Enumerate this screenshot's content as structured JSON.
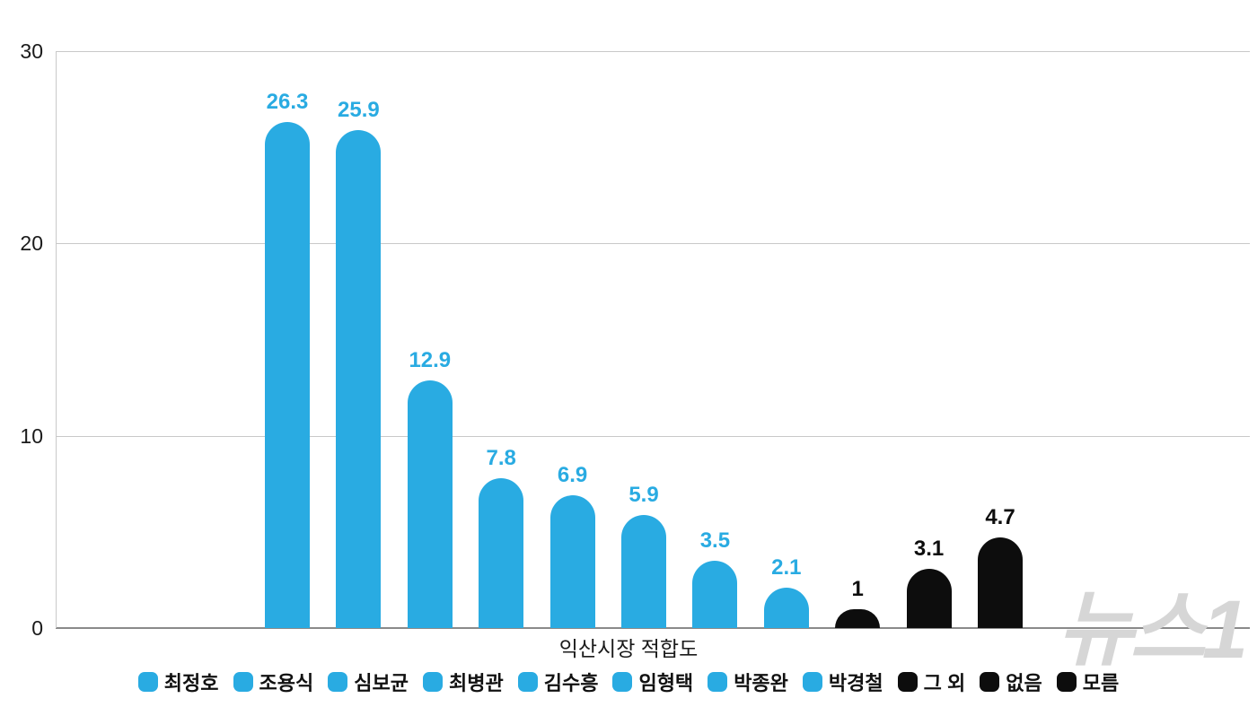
{
  "chart_data": {
    "type": "bar",
    "title": "익산시장 적합도",
    "categories": [
      "최정호",
      "조용식",
      "심보균",
      "최병관",
      "김수흥",
      "임형택",
      "박종완",
      "박경철",
      "그 외",
      "없음",
      "모름"
    ],
    "values": [
      26.3,
      25.9,
      12.9,
      7.8,
      6.9,
      5.9,
      3.5,
      2.1,
      1,
      3.1,
      4.7
    ],
    "value_labels": [
      "26.3",
      "25.9",
      "12.9",
      "7.8",
      "6.9",
      "5.9",
      "3.5",
      "2.1",
      "1",
      "3.1",
      "4.7"
    ],
    "bar_colors": [
      "#29abe2",
      "#29abe2",
      "#29abe2",
      "#29abe2",
      "#29abe2",
      "#29abe2",
      "#29abe2",
      "#29abe2",
      "#0d0d0d",
      "#0d0d0d",
      "#0d0d0d"
    ],
    "yticks": [
      0,
      10,
      20,
      30
    ],
    "ylim": [
      0,
      30
    ],
    "grid": true,
    "legend_position": "bottom",
    "xlabel": "",
    "ylabel": ""
  },
  "colors": {
    "accent_blue": "#29abe2",
    "bar_black": "#0d0d0d",
    "gridline": "#c9c9c9",
    "background": "#ffffff"
  },
  "watermark": "뉴스1"
}
